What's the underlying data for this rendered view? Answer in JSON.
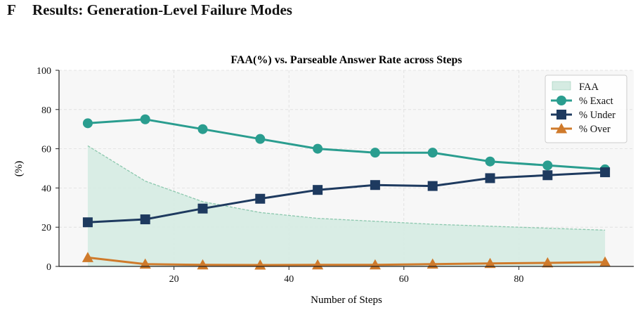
{
  "section": {
    "letter": "F",
    "title": "Results: Generation-Level Failure Modes"
  },
  "chart_data": {
    "type": "line",
    "title": "FAA(%) vs. Parseable Answer Rate across Steps",
    "xlabel": "Number of Steps",
    "ylabel": "(%)",
    "xlim": [
      0,
      100
    ],
    "ylim": [
      0,
      100
    ],
    "xticks": [
      20,
      40,
      60,
      80
    ],
    "yticks": [
      0,
      20,
      40,
      60,
      80,
      100
    ],
    "grid": true,
    "legend_position": "top-right",
    "x": [
      5,
      15,
      25,
      35,
      45,
      55,
      65,
      75,
      85,
      95
    ],
    "area": {
      "name": "FAA",
      "color": "#d5ebe2",
      "line_color": "#8cc8ae",
      "values": [
        61.5,
        43.5,
        33,
        27.5,
        24.5,
        23,
        21.5,
        20.5,
        19.5,
        18.5
      ]
    },
    "series": [
      {
        "name": "% Exact",
        "color": "#2a9d8f",
        "marker": "circle",
        "values": [
          73,
          75,
          70,
          65,
          60,
          58,
          58,
          53.5,
          51.5,
          49.5
        ]
      },
      {
        "name": "% Under",
        "color": "#1e3a5f",
        "marker": "square",
        "values": [
          22.5,
          24,
          29.5,
          34.5,
          39,
          41.5,
          41,
          45,
          46.5,
          48
        ]
      },
      {
        "name": "% Over",
        "color": "#cf7a2b",
        "marker": "triangle",
        "values": [
          4.5,
          1.2,
          0.8,
          0.7,
          0.8,
          0.8,
          1.2,
          1.5,
          1.8,
          2.2
        ]
      }
    ]
  }
}
